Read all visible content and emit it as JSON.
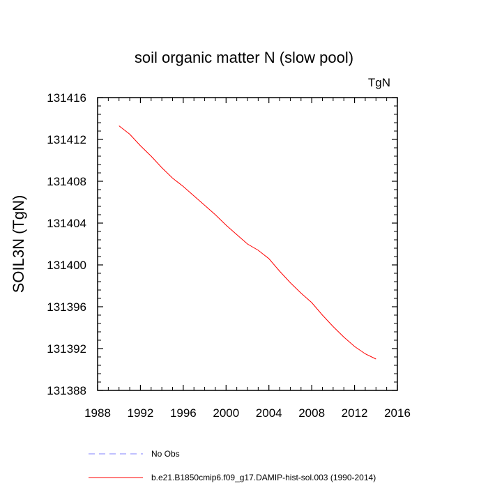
{
  "chart_data": {
    "type": "line",
    "title": "soil organic matter N (slow pool)",
    "units_label": "TgN",
    "ylabel": "SOIL3N  (TgN)",
    "xlabel": "",
    "xlim": [
      1988,
      2016
    ],
    "ylim": [
      131388,
      131416
    ],
    "x_ticks": [
      1988,
      1992,
      1996,
      2000,
      2004,
      2008,
      2012,
      2016
    ],
    "y_ticks": [
      131388,
      131392,
      131396,
      131400,
      131404,
      131408,
      131412,
      131416
    ],
    "grid": false,
    "series": [
      {
        "name": "b.e21.B1850cmip6.f09_g17.DAMIP-hist-sol.003 (1990-2014)",
        "color": "#ff0000",
        "style": "solid",
        "x": [
          1990,
          1991,
          1992,
          1993,
          1994,
          1995,
          1996,
          1997,
          1998,
          1999,
          2000,
          2001,
          2002,
          2003,
          2004,
          2005,
          2006,
          2007,
          2008,
          2009,
          2010,
          2011,
          2012,
          2013,
          2014
        ],
        "y": [
          131413.3,
          131412.5,
          131411.4,
          131410.4,
          131409.3,
          131408.3,
          131407.5,
          131406.6,
          131405.7,
          131404.8,
          131403.8,
          131402.9,
          131402.0,
          131401.4,
          131400.6,
          131399.4,
          131398.3,
          131397.3,
          131396.4,
          131395.2,
          131394.1,
          131393.1,
          131392.2,
          131391.5,
          131391.0
        ]
      }
    ],
    "legend": [
      {
        "label": "No Obs",
        "color": "#8080ff",
        "style": "dashed"
      },
      {
        "label": "b.e21.B1850cmip6.f09_g17.DAMIP-hist-sol.003 (1990-2014)",
        "color": "#ff0000",
        "style": "solid"
      }
    ]
  }
}
